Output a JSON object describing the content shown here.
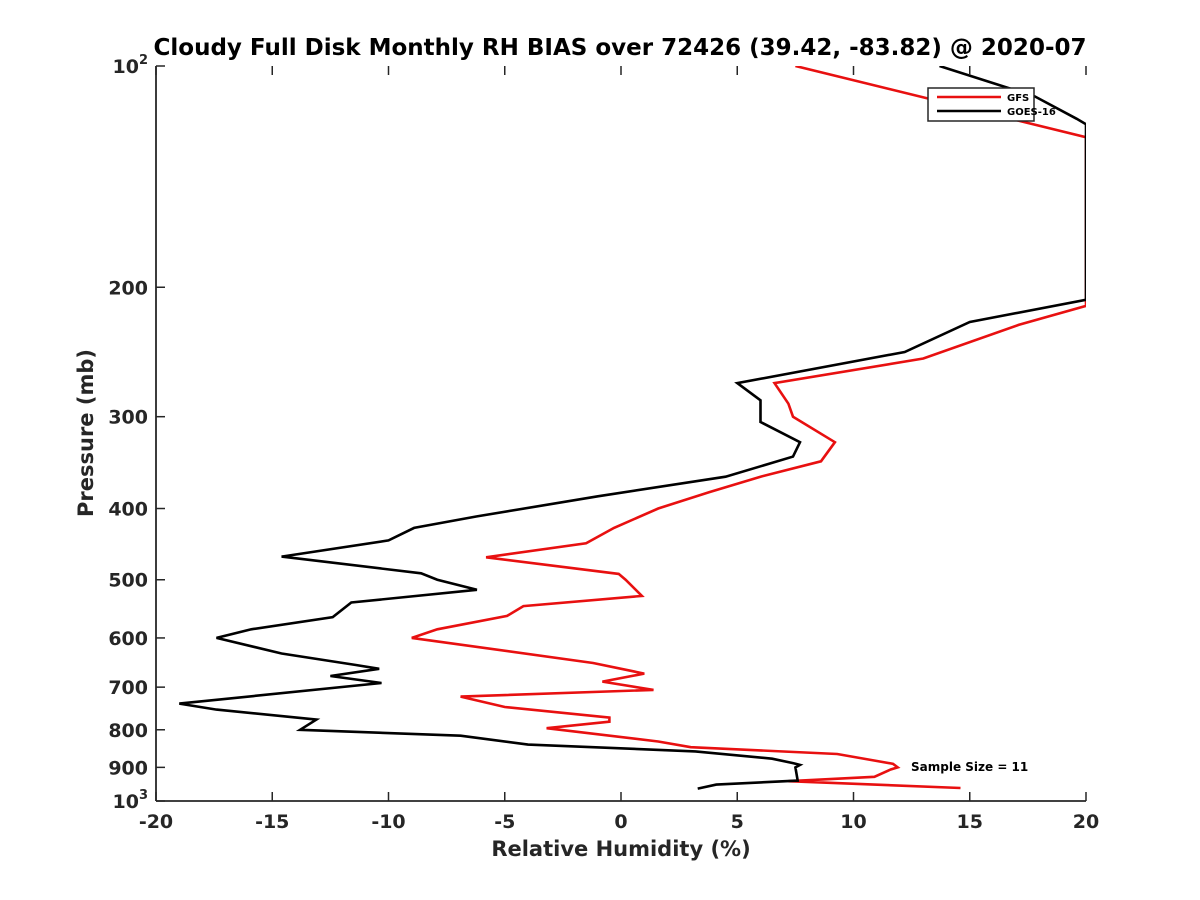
{
  "chart_data": {
    "type": "line",
    "title": "Cloudy Full Disk Monthly RH BIAS over 72426 (39.42, -83.82) @ 2020-07",
    "xlabel": "Relative Humidity (%)",
    "ylabel": "Pressure (mb)",
    "xlim": [
      -20,
      20
    ],
    "ylim": [
      100,
      1000
    ],
    "yscale": "log",
    "y_reversed": true,
    "grid": false,
    "legend_position": "top-right",
    "x_ticks": [
      "-20",
      "-15",
      "-10",
      "-5",
      "0",
      "5",
      "10",
      "15",
      "20"
    ],
    "y_ticks": [
      {
        "value": 100,
        "base": "10",
        "exp": "2"
      },
      {
        "value": 200,
        "label": "200"
      },
      {
        "value": 300,
        "label": "300"
      },
      {
        "value": 400,
        "label": "400"
      },
      {
        "value": 500,
        "label": "500"
      },
      {
        "value": 600,
        "label": "600"
      },
      {
        "value": 700,
        "label": "700"
      },
      {
        "value": 800,
        "label": "800"
      },
      {
        "value": 900,
        "label": "900"
      },
      {
        "value": 1000,
        "base": "10",
        "exp": "3"
      }
    ],
    "annotation": "Sample Size = 11",
    "series": [
      {
        "name": "GFS",
        "color": "#e81010",
        "points": [
          [
            7.5,
            100
          ],
          [
            20,
            125
          ],
          [
            20,
            212
          ],
          [
            17.1,
            225
          ],
          [
            13.0,
            250
          ],
          [
            6.6,
            270
          ],
          [
            7.2,
            288
          ],
          [
            7.4,
            300
          ],
          [
            9.2,
            325
          ],
          [
            8.6,
            345
          ],
          [
            6.0,
            362
          ],
          [
            3.8,
            380
          ],
          [
            1.6,
            400
          ],
          [
            -0.3,
            425
          ],
          [
            -1.5,
            446
          ],
          [
            -5.8,
            466
          ],
          [
            -0.1,
            491
          ],
          [
            0.2,
            500
          ],
          [
            0.9,
            526
          ],
          [
            -4.2,
            543
          ],
          [
            -4.9,
            560
          ],
          [
            -7.9,
            584
          ],
          [
            -9.0,
            600
          ],
          [
            -1.2,
            649
          ],
          [
            1.0,
            671
          ],
          [
            -0.8,
            688
          ],
          [
            1.4,
            706
          ],
          [
            -6.9,
            721
          ],
          [
            -5.0,
            745
          ],
          [
            -0.5,
            770
          ],
          [
            -0.5,
            780
          ],
          [
            -3.2,
            796
          ],
          [
            1.6,
            830
          ],
          [
            3.0,
            845
          ],
          [
            9.3,
            863
          ],
          [
            11.7,
            890
          ],
          [
            11.9,
            900
          ],
          [
            11.6,
            906
          ],
          [
            10.9,
            927
          ],
          [
            7.2,
            940
          ],
          [
            14.6,
            960
          ]
        ]
      },
      {
        "name": "GOES-16",
        "color": "#000000",
        "points": [
          [
            13.7,
            100
          ],
          [
            17.8,
            110
          ],
          [
            19.6,
            118
          ],
          [
            20,
            120
          ],
          [
            20,
            208
          ],
          [
            15,
            223
          ],
          [
            12.2,
            245
          ],
          [
            5.0,
            270
          ],
          [
            6.0,
            285
          ],
          [
            6.0,
            305
          ],
          [
            7.7,
            325
          ],
          [
            7.4,
            340
          ],
          [
            4.5,
            362
          ],
          [
            -1.0,
            385
          ],
          [
            -6.2,
            410
          ],
          [
            -8.9,
            425
          ],
          [
            -10.0,
            442
          ],
          [
            -14.6,
            465
          ],
          [
            -8.6,
            490
          ],
          [
            -7.9,
            500
          ],
          [
            -6.2,
            516
          ],
          [
            -11.6,
            537
          ],
          [
            -12.4,
            562
          ],
          [
            -15.9,
            584
          ],
          [
            -17.4,
            600
          ],
          [
            -14.6,
            630
          ],
          [
            -11.4,
            653
          ],
          [
            -10.4,
            661
          ],
          [
            -12.5,
            676
          ],
          [
            -10.3,
            691
          ],
          [
            -19.0,
            737
          ],
          [
            -17.4,
            751
          ],
          [
            -13.1,
            775
          ],
          [
            -13.8,
            800
          ],
          [
            -6.9,
            815
          ],
          [
            -4.0,
            838
          ],
          [
            3.2,
            856
          ],
          [
            6.5,
            876
          ],
          [
            7.4,
            888
          ],
          [
            7.7,
            893
          ],
          [
            7.5,
            900
          ],
          [
            7.6,
            938
          ],
          [
            4.1,
            950
          ],
          [
            3.3,
            962
          ]
        ]
      }
    ]
  }
}
